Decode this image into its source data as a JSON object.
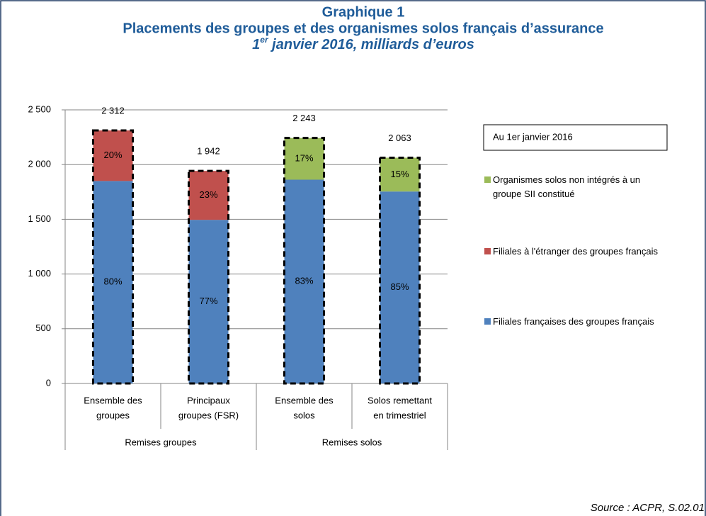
{
  "chart_data": {
    "type": "stacked_bar",
    "title": "Graphique 1",
    "subtitle": "Placements des groupes et des organismes solos français d’assurance",
    "date_note": {
      "pre": "1",
      "sup": "er",
      "rest": " janvier 2016, milliards d’euros"
    },
    "categories": [
      [
        "Ensemble des",
        "groupes"
      ],
      [
        "Principaux",
        "groupes (FSR)"
      ],
      [
        "Ensemble des",
        "solos"
      ],
      [
        "Solos remettant",
        "en trimestriel"
      ]
    ],
    "groups": [
      {
        "label": "Remises groupes",
        "span": [
          0,
          1
        ]
      },
      {
        "label": "Remises solos",
        "span": [
          2,
          3
        ]
      }
    ],
    "series": [
      {
        "name": "Filiales françaises des groupes français",
        "color": "#4f81bd",
        "values": [
          1850,
          1495,
          1862,
          1754
        ],
        "shares": [
          80,
          77,
          83,
          85
        ],
        "share_labels": [
          "80%",
          "77%",
          "83%",
          "85%"
        ]
      },
      {
        "name": "Filiales à l'étranger des groupes français",
        "color": "#c0504d",
        "values": [
          462,
          447,
          null,
          null
        ],
        "shares": [
          20,
          23,
          null,
          null
        ],
        "share_labels": [
          "20%",
          "23%",
          null,
          null
        ]
      },
      {
        "name": "Organismes solos non intégrés à un groupe SII constitué",
        "color": "#9bbb59",
        "values": [
          null,
          null,
          381,
          309
        ],
        "shares": [
          null,
          null,
          17,
          15
        ],
        "share_labels": [
          null,
          null,
          "17%",
          "15%"
        ]
      }
    ],
    "totals": [
      2312,
      1942,
      2243,
      2063
    ],
    "total_labels": [
      "2 312",
      "1 942",
      "2 243",
      "2 063"
    ],
    "ylim": [
      0,
      2500
    ],
    "yticks": [
      0,
      500,
      {
        "value": 1000,
        "label": "1 000"
      },
      {
        "value": 1500,
        "label": "1 500"
      },
      {
        "value": 2000,
        "label": "2 000"
      },
      {
        "value": 2500,
        "label": "2 500"
      }
    ],
    "grid": true,
    "legend_title": "Au 1er janvier 2016",
    "legend_position": "right",
    "source": "Source : ACPR, S.02.01"
  }
}
